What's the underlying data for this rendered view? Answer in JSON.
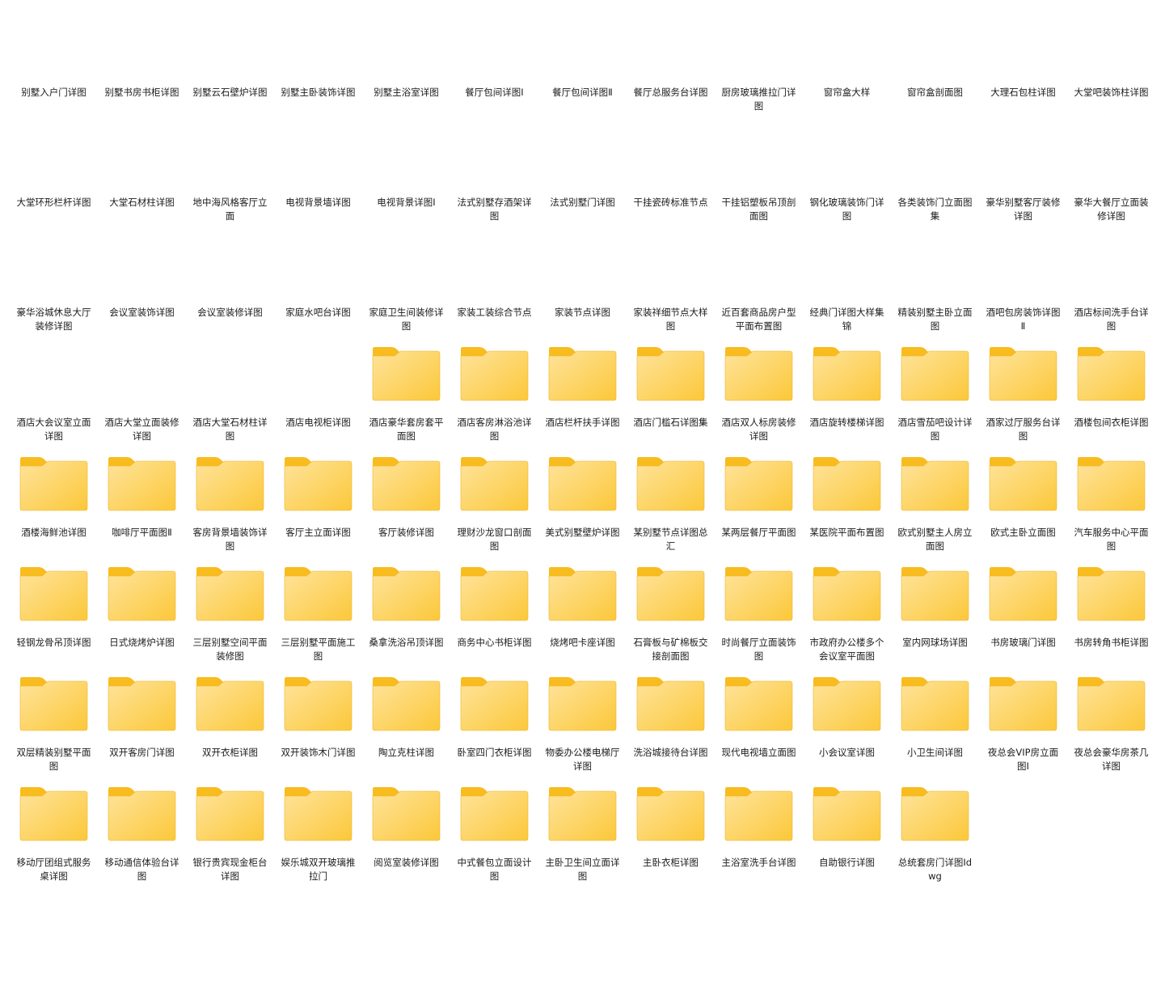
{
  "folder_colors": {
    "tab": "#f8bc1f",
    "body_light": "#fee39a",
    "body_dark": "#fcc83a",
    "edge": "#f0b429"
  },
  "items": [
    {
      "name": "别墅入户门详图",
      "icon": "none"
    },
    {
      "name": "别墅书房书柜详图",
      "icon": "none"
    },
    {
      "name": "别墅云石壁炉详图",
      "icon": "none"
    },
    {
      "name": "别墅主卧装饰详图",
      "icon": "none"
    },
    {
      "name": "别墅主浴室详图",
      "icon": "none"
    },
    {
      "name": "餐厅包间详图Ⅰ",
      "icon": "none"
    },
    {
      "name": "餐厅包间详图Ⅱ",
      "icon": "none"
    },
    {
      "name": "餐厅总服务台详图",
      "icon": "none"
    },
    {
      "name": "厨房玻璃推拉门详图",
      "icon": "none"
    },
    {
      "name": "窗帘盒大样",
      "icon": "none"
    },
    {
      "name": "窗帘盒剖面图",
      "icon": "none"
    },
    {
      "name": "大理石包柱详图",
      "icon": "none"
    },
    {
      "name": "大堂吧装饰柱详图",
      "icon": "none"
    },
    {
      "name": "大堂环形栏杆详图",
      "icon": "none"
    },
    {
      "name": "大堂石材柱详图",
      "icon": "none"
    },
    {
      "name": "地中海风格客厅立面",
      "icon": "none"
    },
    {
      "name": "电视背景墙详图",
      "icon": "none"
    },
    {
      "name": "电视背景详图Ⅰ",
      "icon": "none"
    },
    {
      "name": "法式别墅存酒架详图",
      "icon": "none"
    },
    {
      "name": "法式别墅门详图",
      "icon": "none"
    },
    {
      "name": "干挂瓷砖标准节点",
      "icon": "none"
    },
    {
      "name": "干挂铝塑板吊顶剖面图",
      "icon": "none"
    },
    {
      "name": "钢化玻璃装饰门详图",
      "icon": "none"
    },
    {
      "name": "各类装饰门立面图集",
      "icon": "none"
    },
    {
      "name": "豪华别墅客厅装修详图",
      "icon": "none"
    },
    {
      "name": "豪华大餐厅立面装修详图",
      "icon": "none"
    },
    {
      "name": "豪华浴城休息大厅装修详图",
      "icon": "none"
    },
    {
      "name": "会议室装饰详图",
      "icon": "none"
    },
    {
      "name": "会议室装修详图",
      "icon": "none"
    },
    {
      "name": "家庭水吧台详图",
      "icon": "none"
    },
    {
      "name": "家庭卫生间装修详图",
      "icon": "none"
    },
    {
      "name": "家装工装综合节点",
      "icon": "none"
    },
    {
      "name": "家装节点详图",
      "icon": "none"
    },
    {
      "name": "家装祥细节点大样图",
      "icon": "none"
    },
    {
      "name": "近百套商品房户型平面布置图",
      "icon": "none"
    },
    {
      "name": "经典门详图大样集锦",
      "icon": "none"
    },
    {
      "name": "精装别墅主卧立面图",
      "icon": "none"
    },
    {
      "name": "酒吧包房装饰详图Ⅱ",
      "icon": "none"
    },
    {
      "name": "酒店标间洗手台详图",
      "icon": "none"
    },
    {
      "name": "酒店大会议室立面详图",
      "icon": "none"
    },
    {
      "name": "酒店大堂立面装修详图",
      "icon": "none"
    },
    {
      "name": "酒店大堂石材柱详图",
      "icon": "none"
    },
    {
      "name": "酒店电视柜详图",
      "icon": "none"
    },
    {
      "name": "酒店豪华套房套平面图",
      "icon": "folder"
    },
    {
      "name": "酒店客房淋浴池详图",
      "icon": "folder"
    },
    {
      "name": "酒店栏杆扶手详图",
      "icon": "folder"
    },
    {
      "name": "酒店门槛石详图集",
      "icon": "folder"
    },
    {
      "name": "酒店双人标房装修详图",
      "icon": "folder"
    },
    {
      "name": "酒店旋转楼梯详图",
      "icon": "folder"
    },
    {
      "name": "酒店雪茄吧设计详图",
      "icon": "folder"
    },
    {
      "name": "酒家过厅服务台详图",
      "icon": "folder"
    },
    {
      "name": "酒楼包间衣柜详图",
      "icon": "folder"
    },
    {
      "name": "酒楼海鲜池详图",
      "icon": "folder"
    },
    {
      "name": "咖啡厅平面图Ⅱ",
      "icon": "folder"
    },
    {
      "name": "客房背景墙装饰详图",
      "icon": "folder"
    },
    {
      "name": "客厅主立面详图",
      "icon": "folder"
    },
    {
      "name": "客厅装修详图",
      "icon": "folder"
    },
    {
      "name": "理财沙龙窗口剖面图",
      "icon": "folder"
    },
    {
      "name": "美式别墅壁炉详图",
      "icon": "folder"
    },
    {
      "name": "某别墅节点详图总汇",
      "icon": "folder"
    },
    {
      "name": "某两层餐厅平面图",
      "icon": "folder"
    },
    {
      "name": "某医院平面布置图",
      "icon": "folder"
    },
    {
      "name": "欧式别墅主人房立面图",
      "icon": "folder"
    },
    {
      "name": "欧式主卧立面图",
      "icon": "folder"
    },
    {
      "name": "汽车服务中心平面图",
      "icon": "folder"
    },
    {
      "name": "轻钢龙骨吊顶详图",
      "icon": "folder"
    },
    {
      "name": "日式烧烤炉详图",
      "icon": "folder"
    },
    {
      "name": "三层别墅空间平面装修图",
      "icon": "folder"
    },
    {
      "name": "三层别墅平面施工图",
      "icon": "folder"
    },
    {
      "name": "桑拿洗浴吊顶详图",
      "icon": "folder"
    },
    {
      "name": "商务中心书柜详图",
      "icon": "folder"
    },
    {
      "name": "烧烤吧卡座详图",
      "icon": "folder"
    },
    {
      "name": "石膏板与矿棉板交接剖面图",
      "icon": "folder"
    },
    {
      "name": "时尚餐厅立面装饰图",
      "icon": "folder"
    },
    {
      "name": "市政府办公楼多个会议室平面图",
      "icon": "folder"
    },
    {
      "name": "室内网球场详图",
      "icon": "folder"
    },
    {
      "name": "书房玻璃门详图",
      "icon": "folder"
    },
    {
      "name": "书房转角书柜详图",
      "icon": "folder"
    },
    {
      "name": "双层精装别墅平面图",
      "icon": "folder"
    },
    {
      "name": "双开客房门详图",
      "icon": "folder"
    },
    {
      "name": "双开衣柜详图",
      "icon": "folder"
    },
    {
      "name": "双开装饰木门详图",
      "icon": "folder"
    },
    {
      "name": "陶立克柱详图",
      "icon": "folder"
    },
    {
      "name": "卧室四门衣柜详图",
      "icon": "folder"
    },
    {
      "name": "物委办公楼电梯厅详图",
      "icon": "folder"
    },
    {
      "name": "洗浴城接待台详图",
      "icon": "folder"
    },
    {
      "name": "现代电视墙立面图",
      "icon": "folder"
    },
    {
      "name": "小会议室详图",
      "icon": "folder"
    },
    {
      "name": "小卫生间详图",
      "icon": "folder"
    },
    {
      "name": "夜总会VIP房立面图Ⅰ",
      "icon": "folder"
    },
    {
      "name": "夜总会豪华房茶几详图",
      "icon": "folder"
    },
    {
      "name": "移动厅团组式服务桌详图",
      "icon": "none"
    },
    {
      "name": "移动通信体验台详图",
      "icon": "none"
    },
    {
      "name": "银行贵宾现金柜台详图",
      "icon": "none"
    },
    {
      "name": "娱乐城双开玻璃推拉门",
      "icon": "none"
    },
    {
      "name": "阅览室装修详图",
      "icon": "none"
    },
    {
      "name": "中式餐包立面设计图",
      "icon": "none"
    },
    {
      "name": "主卧卫生间立面详图",
      "icon": "none"
    },
    {
      "name": "主卧衣柜详图",
      "icon": "none"
    },
    {
      "name": "主浴室洗手台详图",
      "icon": "none"
    },
    {
      "name": "自助银行详图",
      "icon": "none"
    },
    {
      "name": "总统套房门详图Ⅰdwg",
      "icon": "none"
    }
  ]
}
